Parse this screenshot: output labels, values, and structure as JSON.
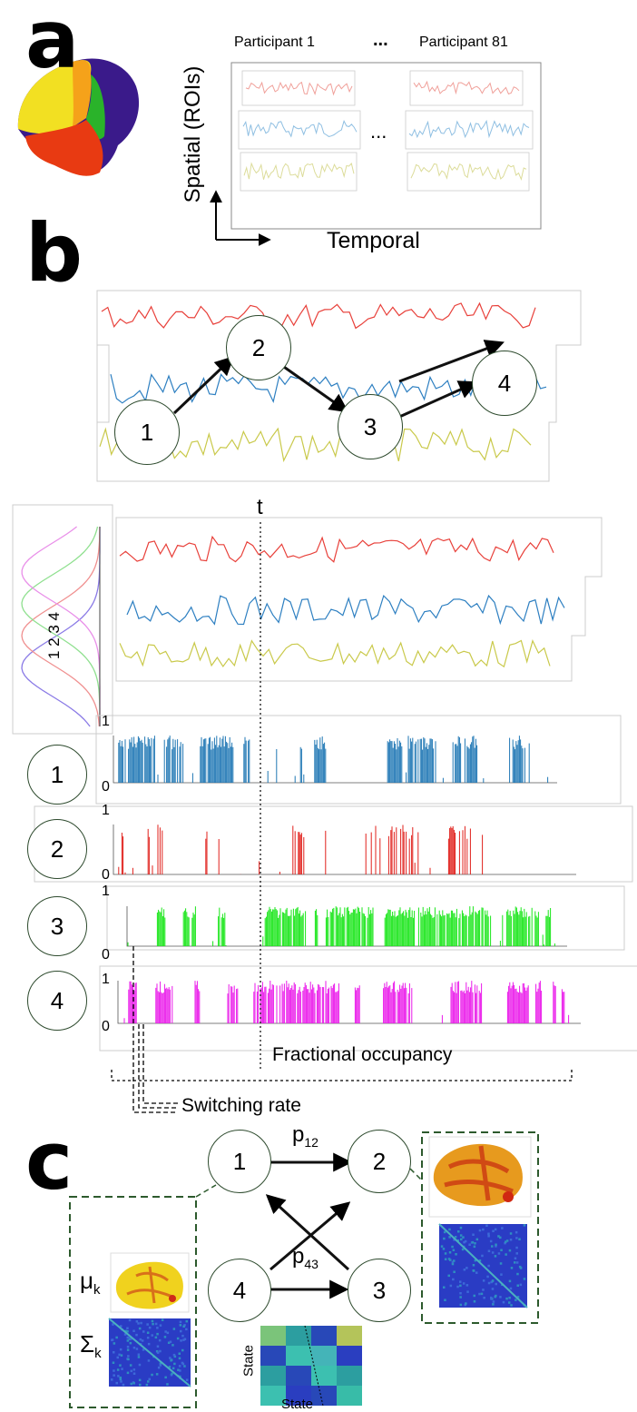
{
  "panels": {
    "a": "a",
    "b": "b",
    "c": "c"
  },
  "panel_a": {
    "participant_first": "Participant 1",
    "participant_ellipsis": "...",
    "participant_last": "Participant 81",
    "inner_ellipsis": "...",
    "spatial_label": "Spatial (ROIs)",
    "temporal_label": "Temporal"
  },
  "panel_b": {
    "states": [
      "1",
      "2",
      "3",
      "4"
    ],
    "time_marker": "t",
    "gaussian_labels": "1 2 3 4",
    "axis_top": "1",
    "axis_bottom": "0",
    "fractional_occupancy": "Fractional occupancy",
    "switching_rate": "Switching rate"
  },
  "panel_c": {
    "states": [
      "1",
      "2",
      "3",
      "4"
    ],
    "p12": "p",
    "p12_sub": "12",
    "p43": "p",
    "p43_sub": "43",
    "mu": "μ",
    "mu_sub": "k",
    "sigma": "Σ",
    "sigma_sub": "k",
    "state_axis_y": "State",
    "state_axis_x": "State"
  },
  "colors": {
    "red_series": "#e8403a",
    "blue_series": "#2d7fc1",
    "yellow_series": "#c9c94a",
    "state1": "#1f77b4",
    "state2": "#e0201b",
    "state3": "#19e619",
    "state4": "#ea19ea",
    "node_border": "#2d4a2d",
    "dashed_box": "#2d5a2d"
  }
}
